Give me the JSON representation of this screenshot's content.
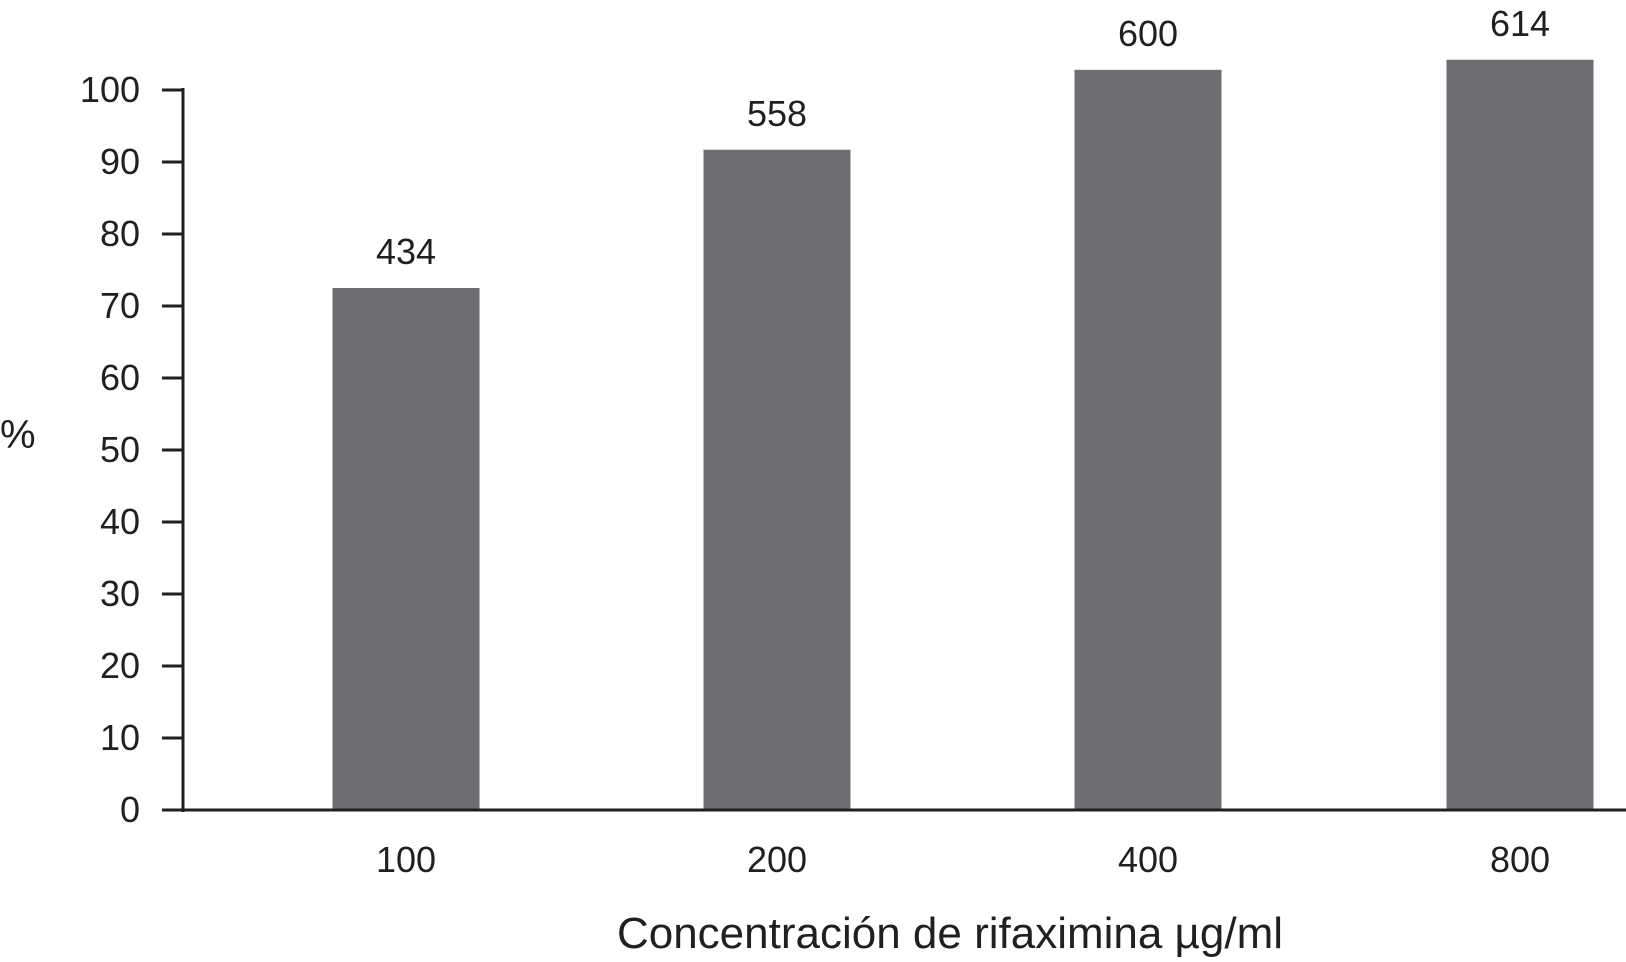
{
  "chart_data": {
    "type": "bar",
    "title": "",
    "xlabel": "Concentración de rifaximina µg/ml",
    "ylabel": "%",
    "categories": [
      "100",
      "200",
      "400",
      "800"
    ],
    "values": [
      72.5,
      91.7,
      102.8,
      104.2
    ],
    "data_labels": [
      "434",
      "558",
      "600",
      "614"
    ],
    "ylim": [
      0,
      100
    ],
    "yticks": [
      "0",
      "10",
      "20",
      "30",
      "40",
      "50",
      "60",
      "70",
      "80",
      "90",
      "100"
    ],
    "grid": false,
    "legend": "none",
    "bar_color": "#6d6e71",
    "axis_color": "#231f20"
  }
}
